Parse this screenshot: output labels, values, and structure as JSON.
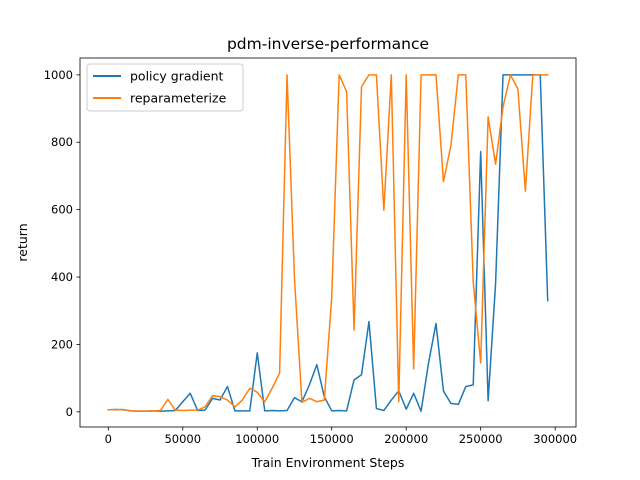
{
  "chart_data": {
    "type": "line",
    "title": "pdm-inverse-performance",
    "xlabel": "Train Environment Steps",
    "ylabel": "return",
    "xlim": [
      -19000,
      314000
    ],
    "ylim": [
      -45,
      1050
    ],
    "xticks": [
      0,
      50000,
      100000,
      150000,
      200000,
      250000,
      300000
    ],
    "yticks": [
      0,
      200,
      400,
      600,
      800,
      1000
    ],
    "grid": false,
    "legend_position": "top-left",
    "series": [
      {
        "name": "policy gradient",
        "color": "#1f77b4",
        "x": [
          0,
          5000,
          10000,
          15000,
          20000,
          25000,
          30000,
          35000,
          40000,
          45000,
          50000,
          55000,
          60000,
          65000,
          70000,
          75000,
          80000,
          85000,
          90000,
          95000,
          100000,
          105000,
          110000,
          115000,
          120000,
          125000,
          130000,
          135000,
          140000,
          145000,
          150000,
          155000,
          160000,
          165000,
          170000,
          175000,
          180000,
          185000,
          190000,
          195000,
          200000,
          205000,
          210000,
          215000,
          220000,
          225000,
          230000,
          235000,
          240000,
          245000,
          250000,
          255000,
          260000,
          265000,
          270000,
          275000,
          280000,
          285000,
          290000,
          295000
        ],
        "values": [
          6,
          7,
          6,
          3,
          2,
          2,
          3,
          2,
          3,
          4,
          30,
          55,
          4,
          5,
          40,
          35,
          75,
          3,
          3,
          3,
          175,
          3,
          4,
          3,
          4,
          42,
          30,
          80,
          140,
          45,
          3,
          4,
          3,
          95,
          110,
          268,
          10,
          4,
          35,
          62,
          8,
          55,
          2,
          145,
          262,
          62,
          25,
          22,
          75,
          80,
          772,
          33,
          380,
          1000,
          1000,
          1000,
          1000,
          1000,
          1000,
          330
        ]
      },
      {
        "name": "reparameterize",
        "color": "#ff7f0e",
        "x": [
          0,
          5000,
          10000,
          15000,
          20000,
          25000,
          30000,
          35000,
          40000,
          45000,
          50000,
          55000,
          60000,
          65000,
          70000,
          75000,
          80000,
          85000,
          90000,
          95000,
          100000,
          105000,
          110000,
          115000,
          120000,
          125000,
          130000,
          135000,
          140000,
          145000,
          150000,
          155000,
          160000,
          165000,
          170000,
          175000,
          180000,
          185000,
          190000,
          195000,
          200000,
          205000,
          210000,
          215000,
          220000,
          225000,
          230000,
          235000,
          240000,
          245000,
          250000,
          255000,
          260000,
          265000,
          270000,
          275000,
          280000,
          285000,
          290000,
          295000
        ],
        "values": [
          6,
          6,
          7,
          3,
          2,
          2,
          3,
          4,
          37,
          5,
          4,
          5,
          5,
          15,
          48,
          45,
          35,
          15,
          35,
          70,
          58,
          30,
          70,
          115,
          1000,
          395,
          28,
          40,
          30,
          35,
          340,
          1000,
          950,
          243,
          965,
          1000,
          1000,
          598,
          1000,
          30,
          1000,
          128,
          1000,
          1000,
          1000,
          683,
          790,
          1000,
          1000,
          385,
          145,
          875,
          735,
          905,
          1000,
          958,
          655,
          1000,
          1000,
          1000
        ]
      }
    ]
  }
}
